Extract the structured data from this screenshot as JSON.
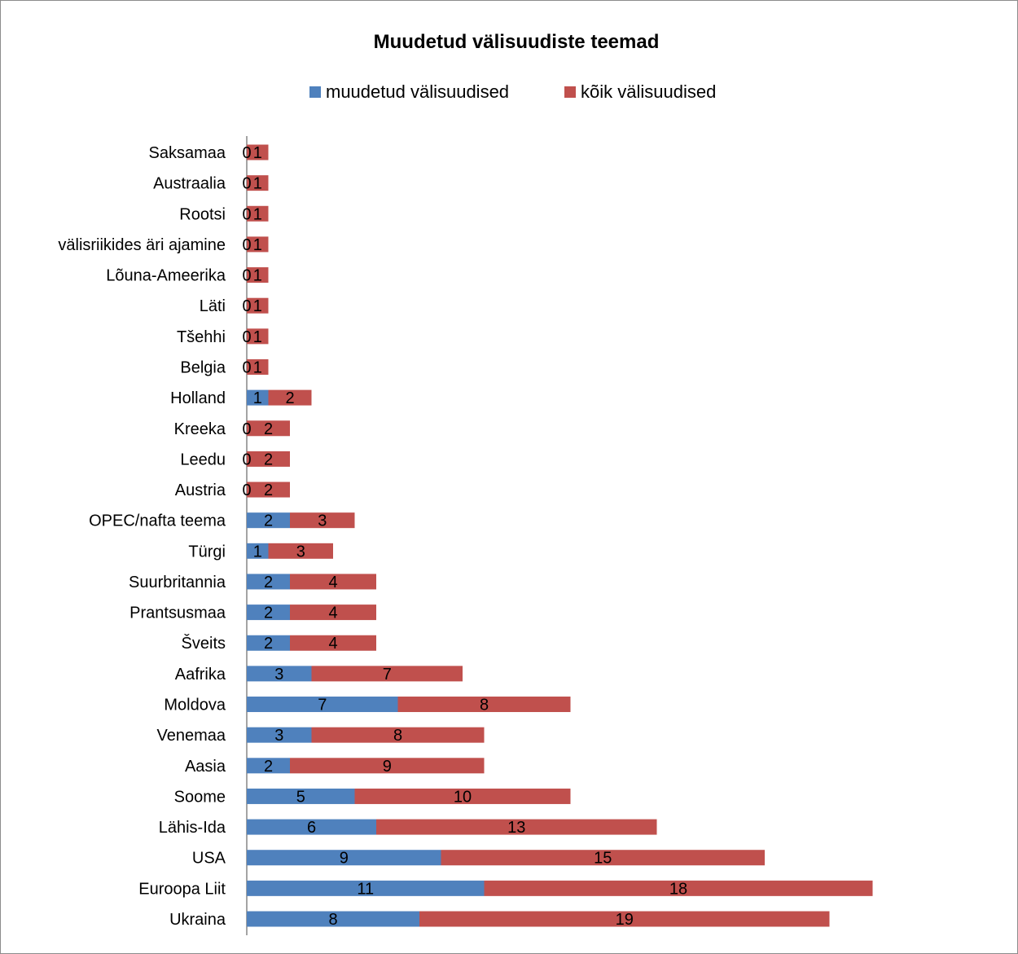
{
  "chart_data": {
    "type": "bar",
    "orientation": "horizontal",
    "stacked": true,
    "title": "Muudetud välisuudiste teemad",
    "xlabel": "",
    "ylabel": "",
    "grid": false,
    "legend_position": "top",
    "categories": [
      "Saksamaa",
      "Austraalia",
      "Rootsi",
      "välisriikides äri ajamine",
      "Lõuna-Ameerika",
      "Läti",
      "Tšehhi",
      "Belgia",
      "Holland",
      "Kreeka",
      "Leedu",
      "Austria",
      "OPEC/nafta teema",
      "Türgi",
      "Suurbritannia",
      "Prantsusmaa",
      "Šveits",
      "Aafrika",
      "Moldova",
      "Venemaa",
      "Aasia",
      "Soome",
      "Lähis-Ida",
      "USA",
      "Euroopa Liit",
      "Ukraina"
    ],
    "series": [
      {
        "name": "muudetud välisuudised",
        "color": "#4f81bd",
        "values": [
          0,
          0,
          0,
          0,
          0,
          0,
          0,
          0,
          1,
          0,
          0,
          0,
          2,
          1,
          2,
          2,
          2,
          3,
          7,
          3,
          2,
          5,
          6,
          9,
          11,
          8
        ]
      },
      {
        "name": "kõik välisuudised",
        "color": "#c0504d",
        "values": [
          1,
          1,
          1,
          1,
          1,
          1,
          1,
          1,
          2,
          2,
          2,
          2,
          3,
          3,
          4,
          4,
          4,
          7,
          8,
          8,
          9,
          10,
          13,
          15,
          18,
          19
        ]
      }
    ]
  }
}
